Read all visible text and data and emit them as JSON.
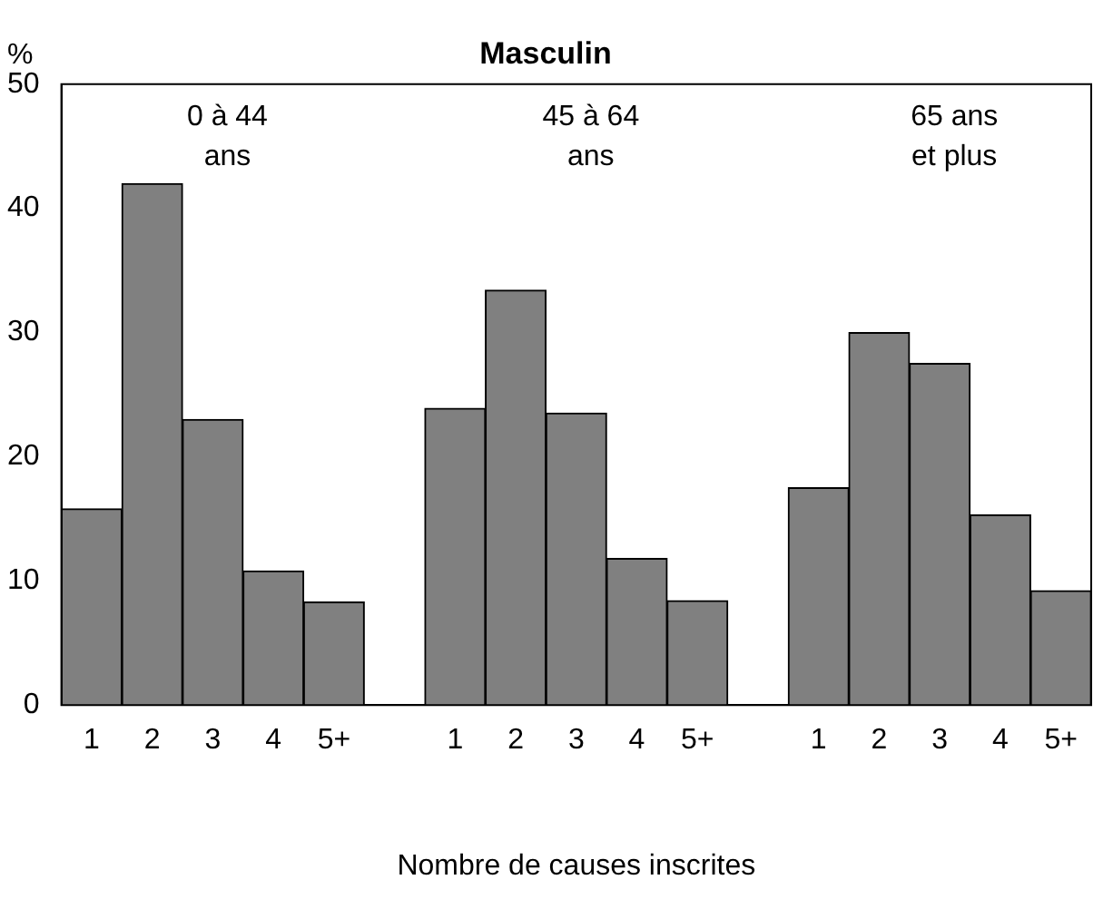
{
  "chart_data": {
    "type": "bar",
    "title": "Masculin",
    "xlabel": "Nombre de causes inscrites",
    "ylabel": "%",
    "categories": [
      "1",
      "2",
      "3",
      "4",
      "5+",
      null,
      "1",
      "2",
      "3",
      "4",
      "5+",
      null,
      "1",
      "2",
      "3",
      "4",
      "5+"
    ],
    "values": [
      15.8,
      42,
      23,
      10.8,
      8.3,
      null,
      23.9,
      33.4,
      23.5,
      11.8,
      8.4,
      null,
      17.5,
      30,
      27.5,
      15.3,
      9.2
    ],
    "color": "#808080",
    "ylim": [
      0,
      50
    ],
    "yticks": [
      0,
      10,
      20,
      30,
      40,
      50
    ],
    "grid": false,
    "legend": false,
    "annotations": [
      "0 à 44\nans",
      "45 à 64\nans",
      "65 ans\net plus"
    ]
  }
}
